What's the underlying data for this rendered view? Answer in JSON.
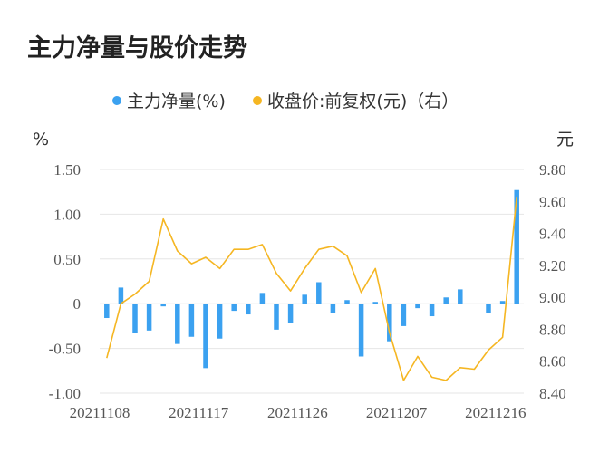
{
  "chart_data": {
    "type": "bar",
    "title": "主力净量与股价走势",
    "legend_position": "top-center",
    "grid": true,
    "y_left": {
      "unit": "%",
      "range": [
        -1.0,
        1.5
      ],
      "ticks": [
        "1.50",
        "1.00",
        "0.50",
        "0",
        "-0.50",
        "-1.00"
      ]
    },
    "y_right": {
      "unit": "元",
      "range": [
        8.4,
        9.8
      ],
      "ticks": [
        "9.80",
        "9.60",
        "9.40",
        "9.20",
        "9.00",
        "8.80",
        "8.60",
        "8.40"
      ]
    },
    "x_tick_labels": [
      "20211108",
      "20211117",
      "20211126",
      "20211207",
      "20211216"
    ],
    "x_tick_indices": [
      0,
      7,
      14,
      21,
      28
    ],
    "series": [
      {
        "name": "主力净量(%)",
        "type": "bar",
        "axis": "left",
        "color": "#3ba1f0",
        "values": [
          -0.16,
          0.18,
          -0.33,
          -0.3,
          -0.03,
          -0.45,
          -0.37,
          -0.72,
          -0.39,
          -0.08,
          -0.12,
          0.12,
          -0.29,
          -0.22,
          0.1,
          0.24,
          -0.1,
          0.04,
          -0.59,
          0.02,
          -0.42,
          -0.25,
          -0.05,
          -0.14,
          0.07,
          0.16,
          0.0,
          -0.1,
          0.03,
          1.27
        ]
      },
      {
        "name": "收盘价:前复权(元)（右）",
        "type": "line",
        "axis": "right",
        "color": "#f5b622",
        "values": [
          8.62,
          8.96,
          9.02,
          9.1,
          9.49,
          9.29,
          9.21,
          9.25,
          9.18,
          9.3,
          9.3,
          9.33,
          9.15,
          9.04,
          9.18,
          9.3,
          9.32,
          9.26,
          9.03,
          9.18,
          8.78,
          8.48,
          8.63,
          8.5,
          8.48,
          8.56,
          8.55,
          8.67,
          8.75,
          9.63
        ]
      }
    ]
  }
}
